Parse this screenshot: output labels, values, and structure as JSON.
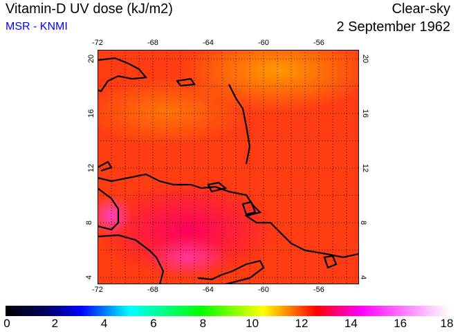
{
  "title": "Vitamin-D UV dose (kJ/m2)",
  "source": "MSR - KNMI",
  "condition": "Clear-sky",
  "date": "2 September 1962",
  "lon_ticks": [
    "-72",
    "-68",
    "-64",
    "-60",
    "-56"
  ],
  "lat_ticks": [
    "20",
    "16",
    "12",
    "8",
    "4"
  ],
  "colorbar": {
    "labels": [
      "0",
      "2",
      "4",
      "6",
      "8",
      "10",
      "12",
      "14",
      "16",
      "18"
    ],
    "min": 0,
    "max": 18
  },
  "colors": {
    "field": "#ff3a10",
    "coast": "#000000",
    "source": "#0000ff"
  }
}
